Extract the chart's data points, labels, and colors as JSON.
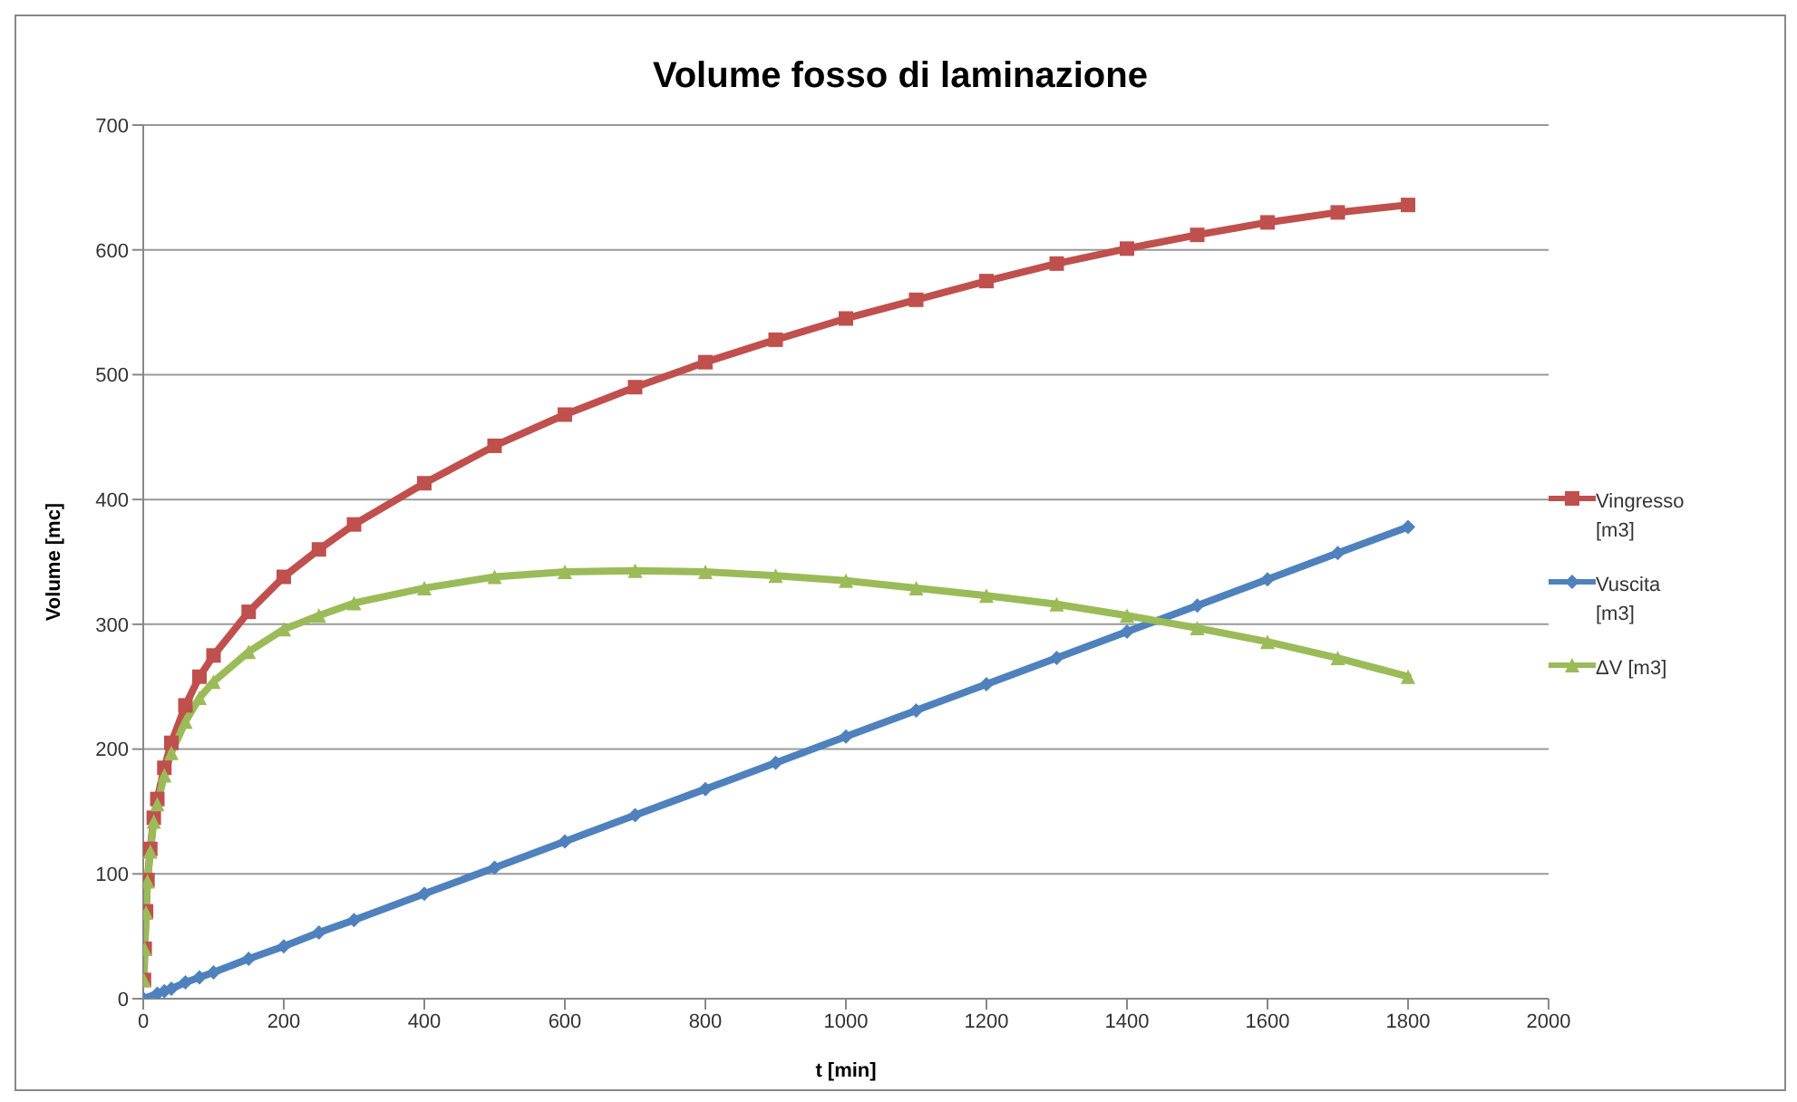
{
  "chart_data": {
    "type": "line",
    "title": "Volume fosso di laminazione",
    "xlabel": "t [min]",
    "ylabel": "Volume [mc]",
    "x": [
      0,
      1,
      2,
      4,
      6,
      10,
      15,
      20,
      30,
      40,
      60,
      80,
      100,
      150,
      200,
      250,
      300,
      400,
      500,
      600,
      700,
      800,
      900,
      1000,
      1100,
      1200,
      1300,
      1400,
      1500,
      1600,
      1700,
      1800
    ],
    "series": [
      {
        "name": "Vingresso [m3]",
        "color": "#c0504d",
        "marker": "square",
        "values": [
          null,
          15,
          40,
          70,
          95,
          120,
          145,
          160,
          185,
          205,
          235,
          258,
          275,
          310,
          338,
          360,
          380,
          413,
          443,
          468,
          490,
          510,
          528,
          545,
          560,
          575,
          589,
          601,
          612,
          622,
          630,
          636
        ]
      },
      {
        "name": "Vuscita [m3]",
        "color": "#4f81bd",
        "marker": "diamond",
        "values": [
          0,
          null,
          null,
          null,
          null,
          null,
          null,
          4,
          6,
          8,
          13,
          17,
          21,
          32,
          42,
          53,
          63,
          84,
          105,
          126,
          147,
          168,
          189,
          210,
          231,
          252,
          273,
          294,
          315,
          336,
          357,
          378
        ]
      },
      {
        "name": "ΔV [m3]",
        "color": "#9bbb59",
        "marker": "triangle",
        "values": [
          null,
          15,
          40,
          69,
          94,
          118,
          142,
          156,
          179,
          197,
          222,
          241,
          254,
          278,
          296,
          307,
          317,
          329,
          338,
          342,
          343,
          342,
          339,
          335,
          329,
          323,
          316,
          307,
          297,
          286,
          273,
          258
        ]
      }
    ],
    "xlim": [
      0,
      2000
    ],
    "xticks": [
      0,
      200,
      400,
      600,
      800,
      1000,
      1200,
      1400,
      1600,
      1800,
      2000
    ],
    "ylim": [
      0,
      700
    ],
    "yticks": [
      0,
      100,
      200,
      300,
      400,
      500,
      600,
      700
    ],
    "grid": "y",
    "legend": "right"
  }
}
